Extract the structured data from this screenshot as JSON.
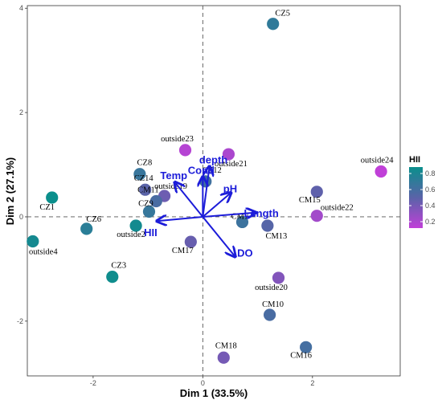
{
  "chart_data": {
    "type": "scatter",
    "subtype": "pca-biplot",
    "xlabel": "Dim 1 (33.5%)",
    "ylabel": "Dim 2 (27.1%)",
    "xlim": [
      -3.2,
      3.6
    ],
    "ylim": [
      -3.05,
      4.05
    ],
    "xticks": [
      -2,
      0,
      2
    ],
    "yticks": [
      -2,
      0,
      2,
      4
    ],
    "grid": false,
    "reference_lines": {
      "x": 0,
      "y": 0,
      "style": "dashed"
    },
    "color_scale": {
      "title": "HII",
      "min": 0.12,
      "max": 0.88,
      "ticks": [
        0.2,
        0.4,
        0.6,
        0.8
      ],
      "low_color": "#c040d8",
      "mid_color": "#5a63a8",
      "high_color": "#0b8f8c"
    },
    "legend_position": "right",
    "points": [
      {
        "label": "CZ5",
        "x": 1.28,
        "y": 3.7,
        "hii": 0.7
      },
      {
        "label": "CZ1",
        "x": -2.75,
        "y": 0.37,
        "hii": 0.88
      },
      {
        "label": "outside4",
        "x": -3.1,
        "y": -0.47,
        "hii": 0.83
      },
      {
        "label": "CZ6",
        "x": -2.12,
        "y": -0.23,
        "hii": 0.73
      },
      {
        "label": "CZ3",
        "x": -1.65,
        "y": -1.15,
        "hii": 0.86
      },
      {
        "label": "CZ8",
        "x": -1.15,
        "y": 0.82,
        "hii": 0.66
      },
      {
        "label": "CZ14",
        "x": -1.05,
        "y": 0.52,
        "hii": 0.5
      },
      {
        "label": "outside19",
        "x": -0.7,
        "y": 0.4,
        "hii": 0.43
      },
      {
        "label": "CM11",
        "x": -0.85,
        "y": 0.3,
        "hii": 0.58
      },
      {
        "label": "CZ9",
        "x": -0.98,
        "y": 0.1,
        "hii": 0.67
      },
      {
        "label": "outside2",
        "x": -1.22,
        "y": -0.17,
        "hii": 0.84
      },
      {
        "label": "outside23",
        "x": -0.32,
        "y": 1.28,
        "hii": 0.16
      },
      {
        "label": "outside21",
        "x": 0.47,
        "y": 1.2,
        "hii": 0.2
      },
      {
        "label": "CZ12",
        "x": 0.05,
        "y": 0.68,
        "hii": 0.62
      },
      {
        "label": "CM17",
        "x": -0.22,
        "y": -0.48,
        "hii": 0.45
      },
      {
        "label": "CM7",
        "x": 0.72,
        "y": -0.1,
        "hii": 0.64
      },
      {
        "label": "CM13",
        "x": 1.18,
        "y": -0.17,
        "hii": 0.52
      },
      {
        "label": "CM15",
        "x": 2.08,
        "y": 0.48,
        "hii": 0.48
      },
      {
        "label": "outside22",
        "x": 2.08,
        "y": 0.02,
        "hii": 0.23
      },
      {
        "label": "outside24",
        "x": 3.25,
        "y": 0.87,
        "hii": 0.12
      },
      {
        "label": "outside20",
        "x": 1.38,
        "y": -1.17,
        "hii": 0.35
      },
      {
        "label": "CM10",
        "x": 1.22,
        "y": -1.88,
        "hii": 0.58
      },
      {
        "label": "CM18",
        "x": 0.38,
        "y": -2.7,
        "hii": 0.4
      },
      {
        "label": "CM16",
        "x": 1.88,
        "y": -2.5,
        "hii": 0.6
      }
    ],
    "variables": [
      {
        "label": "depth",
        "x": 0.12,
        "y": 0.95
      },
      {
        "label": "Cond",
        "x": 0.0,
        "y": 0.75
      },
      {
        "label": "Temp",
        "x": -0.5,
        "y": 0.65
      },
      {
        "label": "pH",
        "x": 0.5,
        "y": 0.45
      },
      {
        "label": "Length",
        "x": 0.95,
        "y": 0.08
      },
      {
        "label": "HII",
        "x": -0.82,
        "y": -0.08
      },
      {
        "label": "DO",
        "x": 0.58,
        "y": -0.75
      }
    ]
  }
}
